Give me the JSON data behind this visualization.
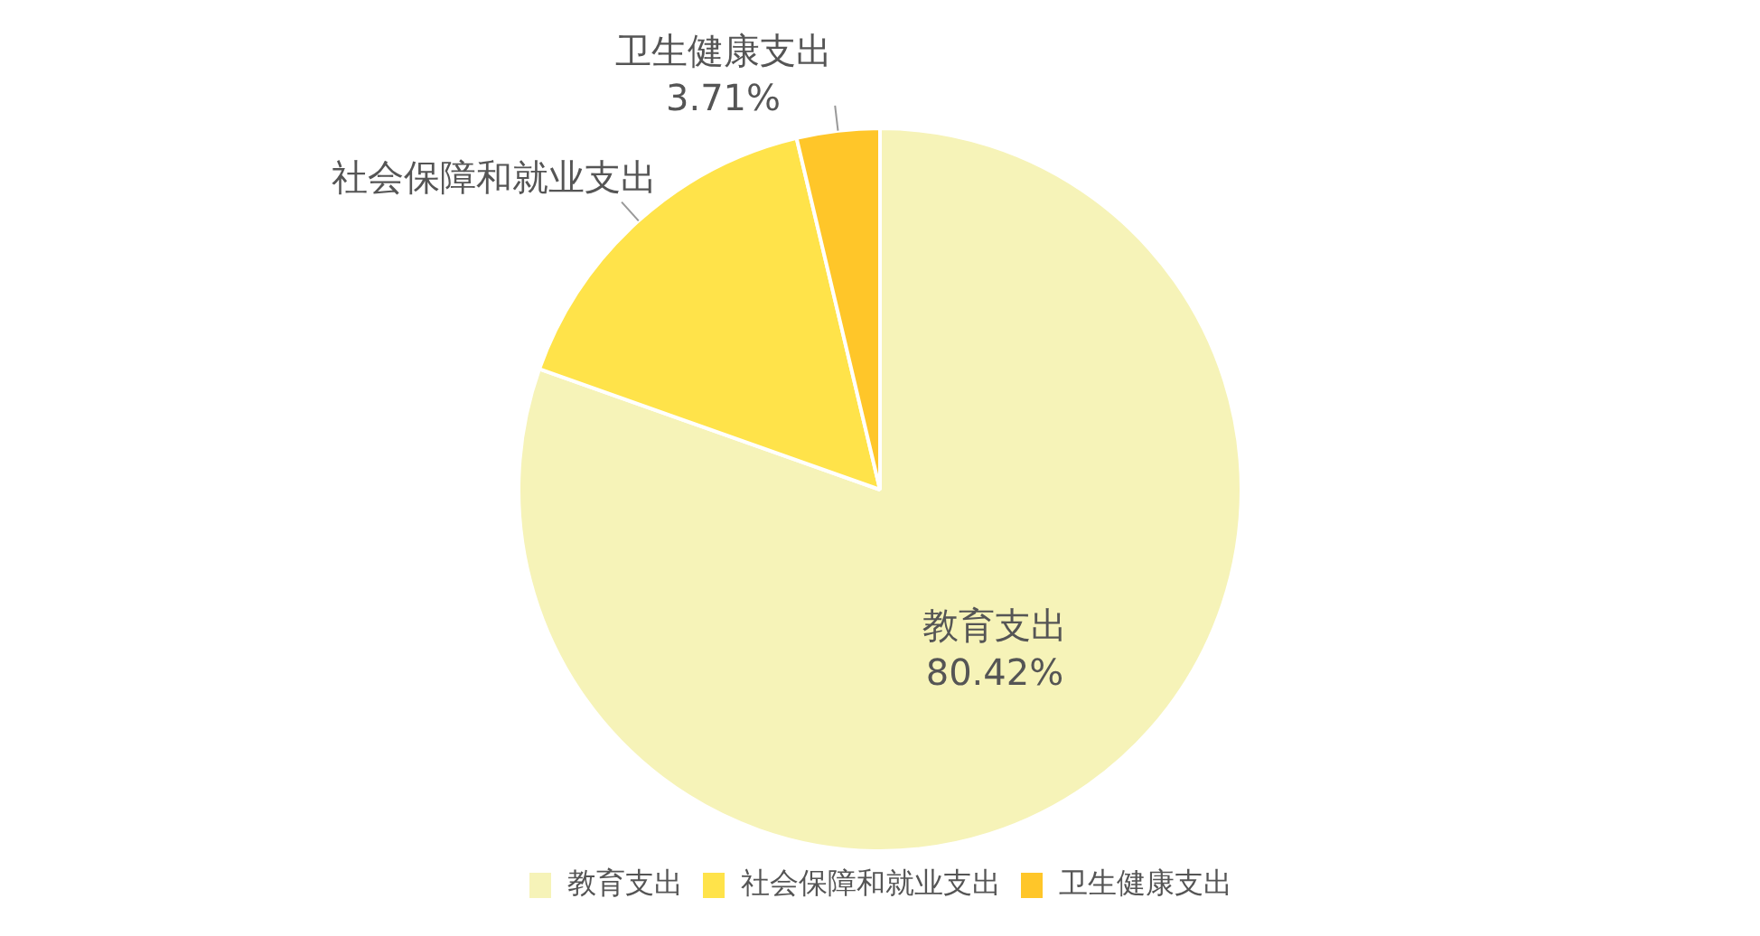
{
  "chart_data": {
    "type": "pie",
    "categories": [
      "教育支出",
      "社会保障和就业支出",
      "卫生健康支出"
    ],
    "values": [
      80.42,
      15.87,
      3.71
    ],
    "colors": [
      "#f6f3b8",
      "#ffe34a",
      "#ffc629"
    ],
    "value_labels": [
      "80.42%",
      null,
      "3.71%"
    ],
    "legend": "bottom"
  }
}
